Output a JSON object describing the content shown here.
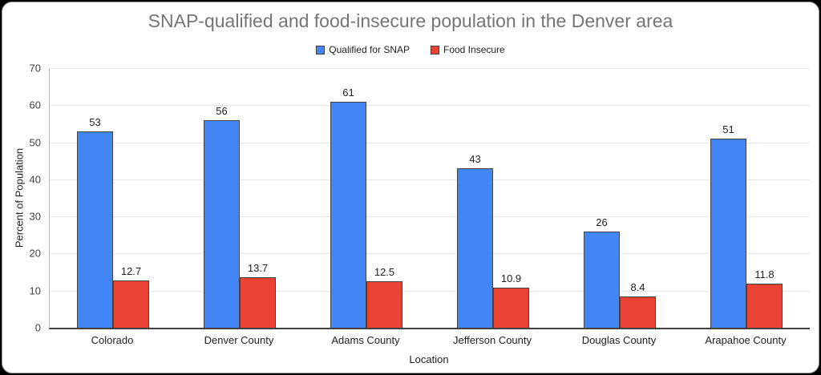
{
  "title": "SNAP-qualified and food-insecure population in the Denver area",
  "chart_data": {
    "type": "bar",
    "title": "SNAP-qualified and food-insecure population in the Denver area",
    "categories": [
      "Colorado",
      "Denver County",
      "Adams County",
      "Jefferson County",
      "Douglas County",
      "Arapahoe County"
    ],
    "series": [
      {
        "name": "Qualified for SNAP",
        "color": "#4285f4",
        "values": [
          53,
          56,
          61,
          43,
          26,
          51
        ],
        "value_labels": [
          "53",
          "56",
          "61",
          "43",
          "26",
          "51"
        ]
      },
      {
        "name": "Food Insecure",
        "color": "#ea4335",
        "values": [
          12.7,
          13.7,
          12.5,
          10.9,
          8.4,
          11.8
        ],
        "value_labels": [
          "12.7",
          "13.7",
          "12.5",
          "10.9",
          "8.4",
          "11.8"
        ]
      }
    ],
    "xlabel": "Location",
    "ylabel": "Percent of Population",
    "ylim": [
      0,
      70
    ],
    "yticks": [
      0,
      10,
      20,
      30,
      40,
      50,
      60,
      70
    ],
    "grid": true,
    "legend_position": "top",
    "bar_border_color": "#424242",
    "grid_color": "#e6e6e6",
    "axis_line_color": "#b7b7b7",
    "baseline_color": "#424242",
    "title_color": "#757575",
    "background_color": "#ffffff",
    "frame_color": "#000000"
  }
}
